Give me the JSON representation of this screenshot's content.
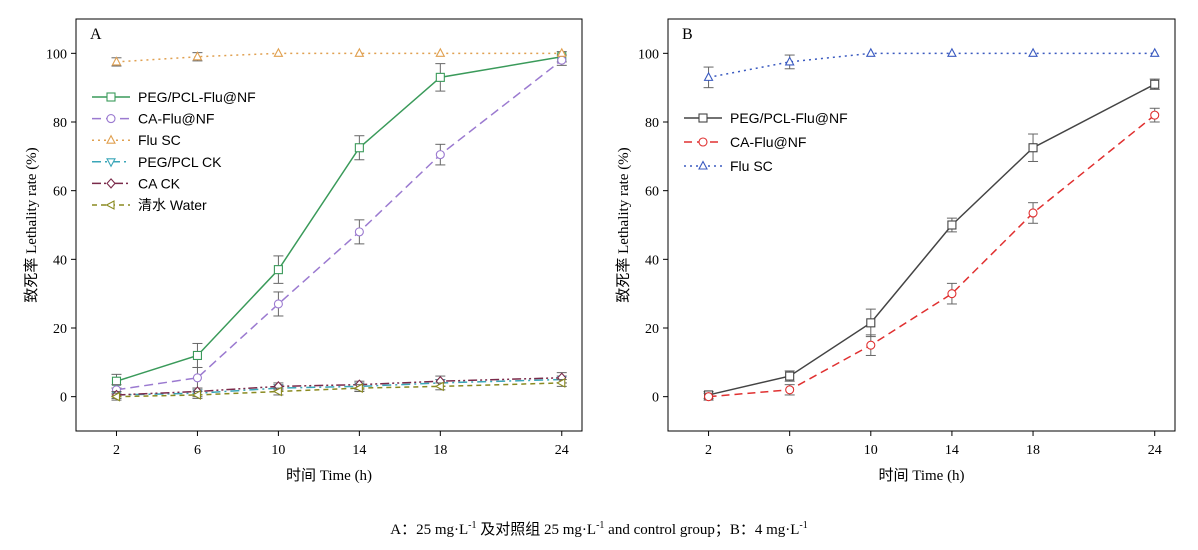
{
  "caption": {
    "a_prefix": "A：25 mg·L",
    "a_exp": "-1",
    "a_middle": " 及对照组 25 mg·L",
    "a_exp2": "-1",
    "a_suffix": " and control group；B：4 mg·L",
    "b_exp": "-1"
  },
  "chart_data": [
    {
      "panel": "A",
      "type": "line",
      "xlabel": "时间 Time (h)",
      "ylabel": "致死率 Lethality rate (%)",
      "x": [
        2,
        6,
        10,
        14,
        18,
        24
      ],
      "xlim": [
        0,
        25
      ],
      "ylim": [
        -10,
        110
      ],
      "xticks": [
        2,
        6,
        10,
        14,
        18,
        24
      ],
      "yticks": [
        0,
        20,
        40,
        60,
        80,
        100
      ],
      "grid": false,
      "legend_position": "left-upper",
      "series": [
        {
          "name": "PEG/PCL-Flu@NF",
          "values": [
            4.5,
            12,
            37,
            72.5,
            93,
            99
          ],
          "errors": [
            2,
            3.5,
            4,
            3.5,
            4,
            1.5
          ],
          "color": "#3a9a5a",
          "dash": "",
          "marker": "square"
        },
        {
          "name": "CA-Flu@NF",
          "values": [
            2,
            5.5,
            27,
            48,
            70.5,
            98
          ],
          "errors": [
            1.5,
            3,
            3.5,
            3.5,
            3,
            1.5
          ],
          "color": "#9b7ad0",
          "dash": "9,5",
          "marker": "circle"
        },
        {
          "name": "Flu SC",
          "values": [
            97.5,
            99,
            100,
            100,
            100,
            100
          ],
          "errors": [
            1.2,
            1.2,
            0,
            0,
            0,
            0
          ],
          "color": "#e0a050",
          "dash": "2,4",
          "marker": "triangle-up"
        },
        {
          "name": "PEG/PCL CK",
          "values": [
            0.5,
            1,
            2.5,
            3,
            4,
            5
          ],
          "errors": [
            1,
            1,
            1,
            1,
            1,
            1
          ],
          "color": "#3aa6b8",
          "dash": "9,4,2,4",
          "marker": "triangle-down"
        },
        {
          "name": "CA CK",
          "values": [
            0.5,
            1.5,
            3,
            3.5,
            4.5,
            5.5
          ],
          "errors": [
            1,
            1,
            1,
            1,
            1.5,
            1.5
          ],
          "color": "#7a2a4a",
          "dash": "9,3,2,3,2,3",
          "marker": "diamond"
        },
        {
          "name": "清水 Water",
          "values": [
            0,
            0.5,
            1.5,
            2.5,
            3,
            4
          ],
          "errors": [
            1,
            1,
            1,
            1,
            1,
            1
          ],
          "color": "#8a8a20",
          "dash": "5,4",
          "marker": "triangle-left"
        }
      ]
    },
    {
      "panel": "B",
      "type": "line",
      "xlabel": "时间 Time (h)",
      "ylabel": "致死率 Lethality rate (%)",
      "x": [
        2,
        6,
        10,
        14,
        18,
        24
      ],
      "xlim": [
        0,
        25
      ],
      "ylim": [
        -10,
        110
      ],
      "xticks": [
        2,
        6,
        10,
        14,
        18,
        24
      ],
      "yticks": [
        0,
        20,
        40,
        60,
        80,
        100
      ],
      "grid": false,
      "legend_position": "left-middle",
      "series": [
        {
          "name": "PEG/PCL-Flu@NF",
          "values": [
            0.5,
            6,
            21.5,
            50,
            72.5,
            91
          ],
          "errors": [
            1,
            1.5,
            4,
            2,
            4,
            1.5
          ],
          "color": "#444444",
          "dash": "",
          "marker": "square"
        },
        {
          "name": "CA-Flu@NF",
          "values": [
            0,
            2,
            15,
            30,
            53.5,
            82
          ],
          "errors": [
            1,
            1.5,
            3,
            3,
            3,
            2
          ],
          "color": "#e03030",
          "dash": "8,5",
          "marker": "circle"
        },
        {
          "name": "Flu SC",
          "values": [
            93,
            97.5,
            100,
            100,
            100,
            100
          ],
          "errors": [
            3,
            2,
            0,
            0,
            0,
            0
          ],
          "color": "#3a5ac0",
          "dash": "2,4",
          "marker": "triangle-up"
        }
      ]
    }
  ]
}
